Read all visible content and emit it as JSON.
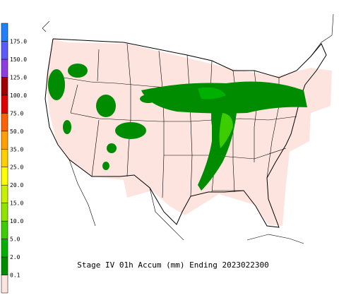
{
  "title": "Stage IV 01h Accum (mm) Ending 2023022300",
  "colorbar": {
    "colors": [
      "#fde4df",
      "#008c00",
      "#00b000",
      "#3ccc00",
      "#90e400",
      "#c8f000",
      "#ffff00",
      "#ffd000",
      "#ffa000",
      "#ff6000",
      "#e00000",
      "#a00000",
      "#8c3ce0",
      "#5a5aff",
      "#2080ff"
    ],
    "labels": [
      "0.1",
      "2.0",
      "5.0",
      "10.0",
      "15.0",
      "20.0",
      "25.0",
      "35.0",
      "50.0",
      "75.0",
      "100.0",
      "125.0",
      "150.0",
      "175.0"
    ]
  }
}
